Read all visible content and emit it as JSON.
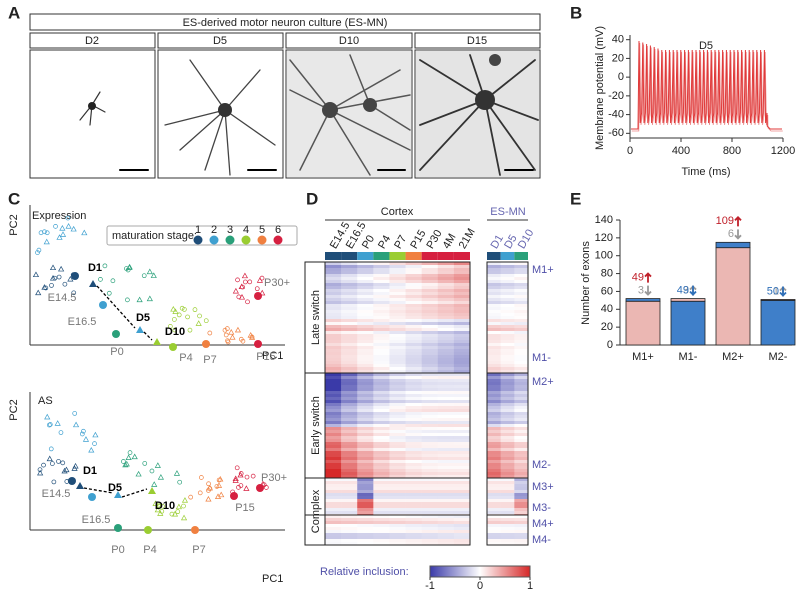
{
  "panel_labels": [
    "A",
    "B",
    "C",
    "D",
    "E"
  ],
  "panel_a": {
    "title": "ES-derived motor neuron culture (ES-MN)",
    "columns": [
      "D2",
      "D5",
      "D10",
      "D15"
    ]
  },
  "panel_b": {
    "title": "D5",
    "ylabel": "Membrane potential (mV)",
    "xlabel": "Time (ms)",
    "ylim": [
      -65,
      45
    ],
    "yticks": [
      40,
      20,
      0,
      -20,
      -40,
      -60
    ],
    "xlim": [
      0,
      1200
    ],
    "xticks": [
      0,
      400,
      800,
      1200
    ],
    "color": "#e03a3a"
  },
  "panel_c": {
    "legend_title": "maturation stage:",
    "stages": [
      1,
      2,
      3,
      4,
      5,
      6
    ],
    "stage_colors": [
      "#1f4e79",
      "#3fa0d0",
      "#2aa07a",
      "#9acd32",
      "#f08040",
      "#d62040"
    ],
    "xlabel": "PC1",
    "ylabel": "PC2",
    "plots": [
      {
        "title": "Expression",
        "points": [
          "E14.5",
          "D1",
          "E16.5",
          "D5",
          "D10",
          "P0",
          "P4",
          "P7",
          "P15",
          "P30+"
        ]
      },
      {
        "title": "AS",
        "points": [
          "E14.5",
          "D1",
          "E16.5",
          "D5",
          "D10",
          "P0",
          "P4",
          "P7",
          "P15",
          "P30+"
        ]
      }
    ]
  },
  "panel_d": {
    "cortex_title": "Cortex",
    "cortex_columns": [
      "E14.5",
      "E16.5",
      "P0",
      "P4",
      "P7",
      "P15",
      "P30",
      "4M",
      "21M"
    ],
    "esmn_title": "ES-MN",
    "esmn_columns": [
      "D1",
      "D5",
      "D10"
    ],
    "groups": [
      "Late switch",
      "Early switch",
      "Complex"
    ],
    "modules": [
      "M1+",
      "M1-",
      "M2+",
      "M2-",
      "M3+",
      "M3-",
      "M4+",
      "M4-"
    ],
    "colorbar_label": "Relative inclusion:",
    "colorbar_ticks": [
      -1,
      0,
      1
    ]
  },
  "panel_e": {
    "ylabel": "Number of exons",
    "ylim": [
      0,
      140
    ],
    "yticks": [
      0,
      20,
      40,
      60,
      80,
      100,
      120,
      140
    ],
    "categories": [
      "M1+",
      "M1-",
      "M2+",
      "M2-"
    ],
    "main": [
      49,
      49,
      109,
      50
    ],
    "minor": [
      3,
      3,
      6,
      1
    ],
    "colors": [
      "#ebb7b3",
      "#3f7fc9",
      "#ebb7b3",
      "#3f7fc9"
    ],
    "label_colors": [
      "#c0202a",
      "#2f6fb8",
      "#c0202a",
      "#2f6fb8"
    ],
    "minor_color": "#999999"
  }
}
